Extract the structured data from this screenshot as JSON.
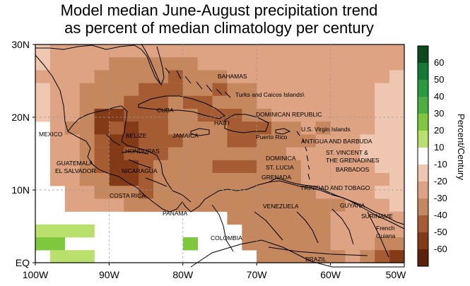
{
  "title": {
    "line1": "Model median June-August precipitation trend",
    "line2": "as percent of median climatology per century"
  },
  "axes": {
    "lat_labels": [
      "30N",
      "20N",
      "10N",
      "EQ"
    ],
    "lon_labels": [
      "100W",
      "90W",
      "80W",
      "70W",
      "60W",
      "50W"
    ]
  },
  "colorbar": {
    "title": "Percent/Century",
    "labels": [
      "60",
      "50",
      "40",
      "30",
      "20",
      "10",
      "-10",
      "-20",
      "-30",
      "-40",
      "-50",
      "-60"
    ],
    "colors": [
      "#0c4a1e",
      "#137a34",
      "#2a9a3e",
      "#4ab140",
      "#7fc83e",
      "#b9e06c",
      "#ffffff",
      "#efc7b0",
      "#dda383",
      "#c4875e",
      "#a55c33",
      "#833a17",
      "#5c2209"
    ]
  },
  "map_labels": {
    "bahamas": "BAHAMAS",
    "turks": "Turks and Caicos Islands\\",
    "cuba": "CUBA",
    "dominican_republic": "DOMINICAN REPUBLIC",
    "haiti": "HAITI",
    "mexico": "MEXICO",
    "belize": "BELIZE",
    "jamaica": "JAMAICA",
    "puerto_rico": "Puerto Rico",
    "usvi": "U.S. Virgin Islands",
    "antigua": "ANTIGUA AND BARBUDA",
    "honduras": "HONDURAS",
    "st_vincent_1": "ST. VINCENT &",
    "st_vincent_2": "THE GRENADINES",
    "guatemala": "GUATEMALA",
    "dominica": "DOMINICA",
    "el_salvador": "EL SALVADOR",
    "nicaragua": "NICARAGUA",
    "st_lucia": "ST. LUCIA",
    "barbados": "BARBADOS",
    "grenada": "GRENADA",
    "trinidad": "TRINIDAD AND TOBAGO",
    "costa_rica": "COSTA RICA",
    "venezuela": "VENEZUELA",
    "guyana": "GUYANA",
    "panama": "PANAMA",
    "suriname": "SURINAME",
    "french_guiana_1": "French",
    "french_guiana_2": "Guiana",
    "colombia": "COLOMBIA",
    "brazil": "BRAZIL"
  }
}
